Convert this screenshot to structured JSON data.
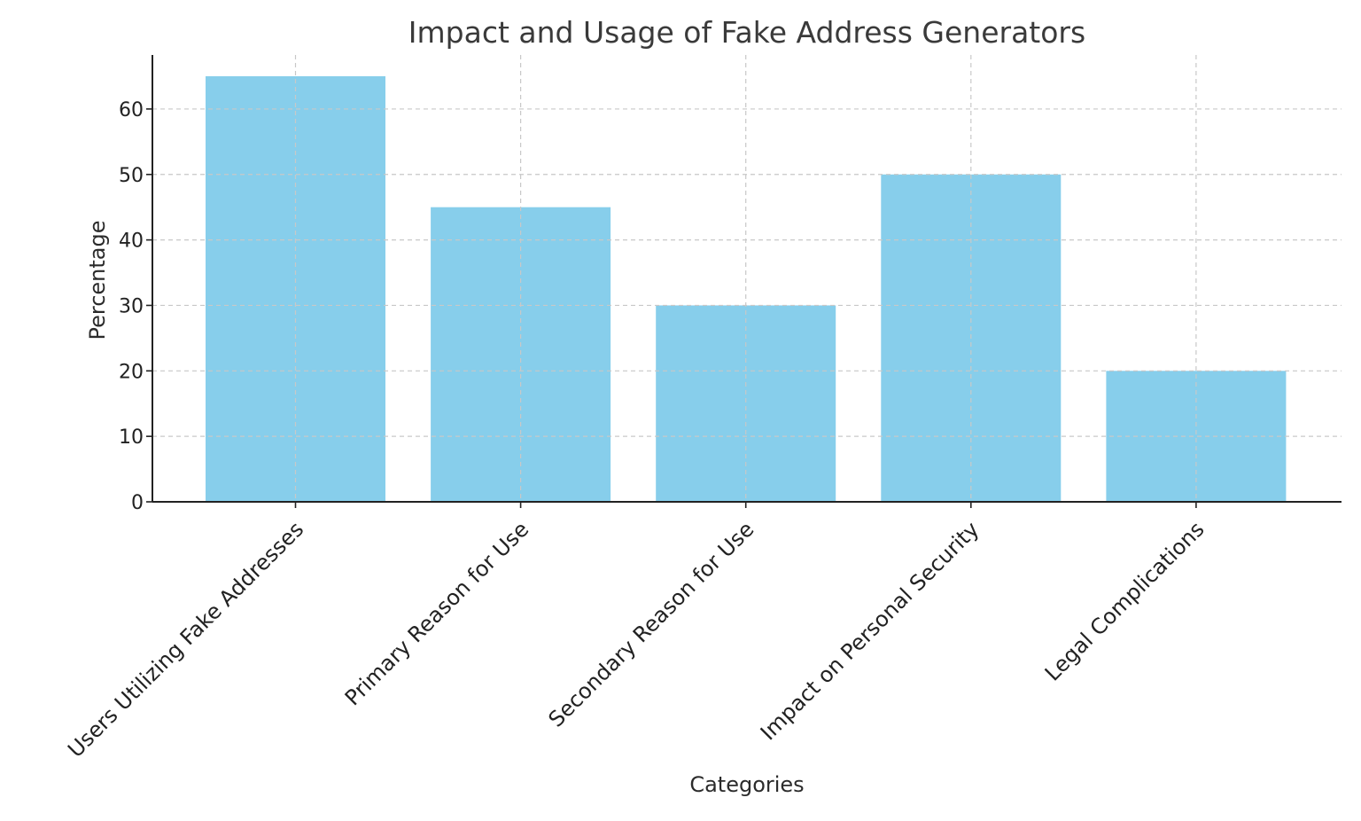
{
  "chart_data": {
    "type": "bar",
    "title": "Impact and Usage of Fake Address Generators",
    "xlabel": "Categories",
    "ylabel": "Percentage",
    "categories": [
      "Users Utilizing Fake Addresses",
      "Primary Reason for Use",
      "Secondary Reason for Use",
      "Impact on Personal Security",
      "Legal Complications"
    ],
    "values": [
      65,
      45,
      30,
      50,
      20
    ],
    "ylim": [
      0,
      68.25
    ],
    "yticks": [
      0,
      10,
      20,
      30,
      40,
      50,
      60
    ],
    "grid": true,
    "bar_color": "#87CEEB"
  }
}
